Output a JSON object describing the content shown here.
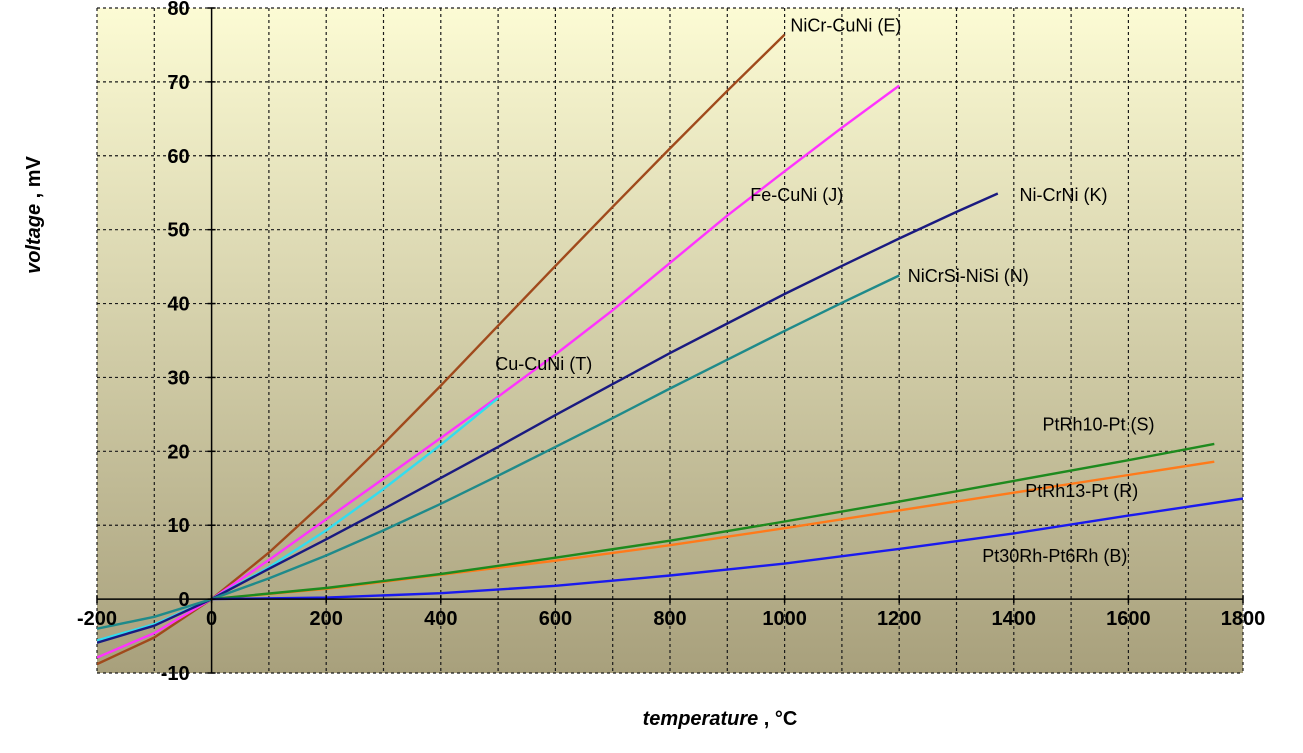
{
  "chart_data": {
    "type": "line",
    "title": "",
    "xlabel": {
      "name": "temperature",
      "unit": " , °C"
    },
    "ylabel": {
      "name": "voltage",
      "unit": " , mV"
    },
    "xlim": [
      -200,
      1800
    ],
    "ylim": [
      -10,
      80
    ],
    "x_ticks": [
      -200,
      0,
      200,
      400,
      600,
      800,
      1000,
      1200,
      1400,
      1600,
      1800
    ],
    "y_ticks": [
      -10,
      0,
      10,
      20,
      30,
      40,
      50,
      60,
      70,
      80
    ],
    "grid": true,
    "legend": "inline labels",
    "background": {
      "top": "#fcfbd4",
      "bottom": "#a8a07c"
    },
    "series": [
      {
        "name": "NiCr-CuNi (E)",
        "color": "#a04a1c",
        "x": [
          -200,
          -100,
          0,
          100,
          200,
          300,
          400,
          500,
          600,
          700,
          800,
          900,
          1000
        ],
        "y": [
          -8.8,
          -5.2,
          0,
          6.3,
          13.4,
          21.0,
          28.9,
          37.0,
          45.1,
          53.1,
          61.0,
          68.8,
          76.4
        ]
      },
      {
        "name": "Fe-CuNi (J)",
        "color": "#ff33ff",
        "x": [
          -200,
          -100,
          0,
          100,
          200,
          300,
          400,
          500,
          600,
          700,
          800,
          900,
          1000,
          1100,
          1200
        ],
        "y": [
          -7.9,
          -4.6,
          0,
          5.3,
          10.8,
          16.3,
          21.8,
          27.4,
          33.1,
          39.1,
          45.5,
          51.9,
          57.9,
          63.8,
          69.5
        ]
      },
      {
        "name": "Cu-CuNi (T)",
        "color": "#33ddee",
        "x": [
          -200,
          -100,
          0,
          100,
          200,
          300,
          400,
          500
        ],
        "y": [
          -5.6,
          -3.4,
          0,
          4.3,
          9.3,
          14.9,
          20.9,
          27.2
        ]
      },
      {
        "name": "Ni-CrNi (K)",
        "color": "#1a1a80",
        "x": [
          -200,
          -100,
          0,
          100,
          200,
          300,
          400,
          500,
          600,
          700,
          800,
          900,
          1000,
          1100,
          1200,
          1300,
          1372
        ],
        "y": [
          -5.9,
          -3.6,
          0,
          4.1,
          8.1,
          12.2,
          16.4,
          20.6,
          24.9,
          29.1,
          33.3,
          37.3,
          41.3,
          45.1,
          48.8,
          52.4,
          54.9
        ]
      },
      {
        "name": "NiCrSi-NiSi (N)",
        "color": "#1f8a8a",
        "x": [
          -200,
          -100,
          0,
          100,
          200,
          300,
          400,
          500,
          600,
          700,
          800,
          900,
          1000,
          1100,
          1200
        ],
        "y": [
          -4.0,
          -2.4,
          0,
          2.8,
          5.9,
          9.3,
          12.9,
          16.7,
          20.6,
          24.5,
          28.5,
          32.4,
          36.3,
          40.1,
          43.8
        ]
      },
      {
        "name": "PtRh10-Pt (S)",
        "color": "#ff7a1a",
        "x": [
          0,
          200,
          400,
          600,
          800,
          1000,
          1200,
          1400,
          1600,
          1750
        ],
        "y": [
          0,
          1.4,
          3.3,
          5.2,
          7.3,
          9.6,
          12.0,
          14.4,
          16.8,
          18.6
        ]
      },
      {
        "name": "PtRh13-Pt (R)",
        "color": "#1e8a1e",
        "x": [
          0,
          200,
          400,
          600,
          800,
          1000,
          1200,
          1400,
          1600,
          1750
        ],
        "y": [
          0,
          1.5,
          3.4,
          5.6,
          7.9,
          10.5,
          13.2,
          16.0,
          18.8,
          21.0
        ]
      },
      {
        "name": "Pt30Rh-Pt6Rh (B)",
        "color": "#1a1aee",
        "x": [
          0,
          200,
          400,
          600,
          800,
          1000,
          1200,
          1400,
          1600,
          1800
        ],
        "y": [
          0,
          0.2,
          0.8,
          1.8,
          3.2,
          4.8,
          6.8,
          8.9,
          11.3,
          13.6
        ]
      }
    ],
    "annotations": [
      {
        "text": "NiCr-CuNi (E)",
        "x": 1010,
        "y": 76.8
      },
      {
        "text": "Fe-CuNi (J)",
        "x": 940,
        "y": 53.9
      },
      {
        "text": "Ni-CrNi (K)",
        "x": 1410,
        "y": 53.9
      },
      {
        "text": "NiCrSi-NiSi (N)",
        "x": 1215,
        "y": 42.9
      },
      {
        "text": "Cu-CuNi (T)",
        "x": 495,
        "y": 31.0
      },
      {
        "text": "PtRh10-Pt (S)",
        "x": 1450,
        "y": 22.8
      },
      {
        "text": "PtRh13-Pt (R)",
        "x": 1420,
        "y": 13.8
      },
      {
        "text": "Pt30Rh-Pt6Rh (B)",
        "x": 1345,
        "y": 5.0
      }
    ]
  }
}
